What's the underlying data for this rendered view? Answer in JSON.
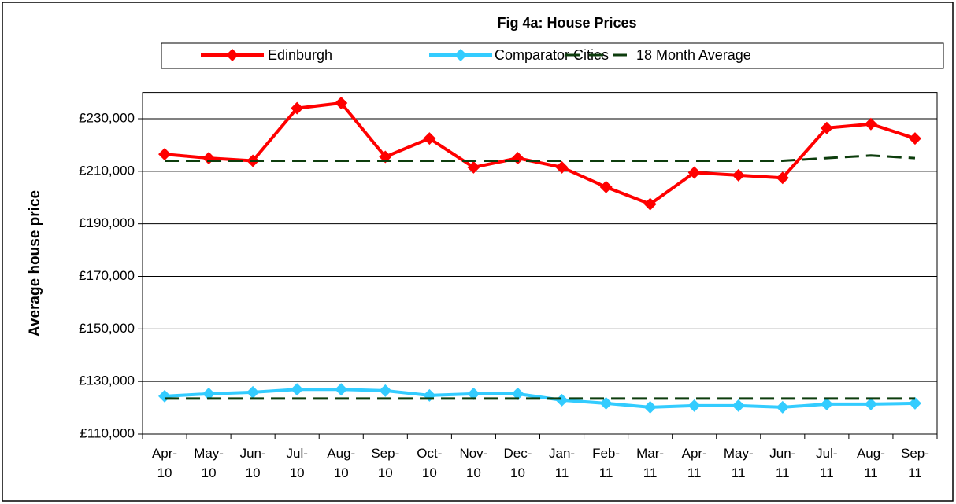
{
  "chart_data": {
    "type": "line",
    "title": "Fig 4a: House Prices",
    "y_label": "Average house price",
    "categories": [
      "Apr-10",
      "May-10",
      "Jun-10",
      "Jul-10",
      "Aug-10",
      "Sep-10",
      "Oct-10",
      "Nov-10",
      "Dec-10",
      "Jan-11",
      "Feb-11",
      "Mar-11",
      "Apr-11",
      "May-11",
      "Jun-11",
      "Jul-11",
      "Aug-11",
      "Sep-11"
    ],
    "series": [
      {
        "name": "Edinburgh",
        "color": "#ff0000",
        "marker": "diamond",
        "dashed": false,
        "values": [
          216500,
          215000,
          214000,
          234000,
          236000,
          215500,
          222500,
          211500,
          215000,
          211500,
          204000,
          197500,
          209500,
          208500,
          207500,
          226500,
          228000,
          222500
        ]
      },
      {
        "name": "Comparator Cities",
        "color": "#33ccff",
        "marker": "diamond",
        "dashed": false,
        "values": [
          124400,
          125300,
          125900,
          127000,
          127000,
          126500,
          124700,
          125300,
          125300,
          122900,
          121700,
          120200,
          120800,
          120800,
          120200,
          121400,
          121400,
          121700
        ]
      },
      {
        "name": "18 Month Average",
        "color": "#0d3d0d",
        "marker": "none",
        "dashed": true,
        "values": [
          214000,
          214000,
          214000,
          214000,
          214000,
          214000,
          214000,
          214000,
          214000,
          214000,
          214000,
          214000,
          214000,
          214000,
          214000,
          215000,
          216000,
          215000
        ]
      },
      {
        "color": "#0d3d0d",
        "marker": "none",
        "dashed": true,
        "values": [
          123500,
          123500,
          123500,
          123500,
          123500,
          123500,
          123500,
          123500,
          123500,
          123500,
          123500,
          123500,
          123500,
          123500,
          123500,
          123500,
          123500,
          123500
        ]
      }
    ],
    "ylim": [
      110000,
      240000
    ],
    "yticks": [
      {
        "value": 110000,
        "label": "£110,000"
      },
      {
        "value": 130000,
        "label": "£130,000"
      },
      {
        "value": 150000,
        "label": "£150,000"
      },
      {
        "value": 170000,
        "label": "£170,000"
      },
      {
        "value": 190000,
        "label": "£190,000"
      },
      {
        "value": 210000,
        "label": "£210,000"
      },
      {
        "value": 230000,
        "label": "£230,000"
      }
    ],
    "grid": true
  }
}
